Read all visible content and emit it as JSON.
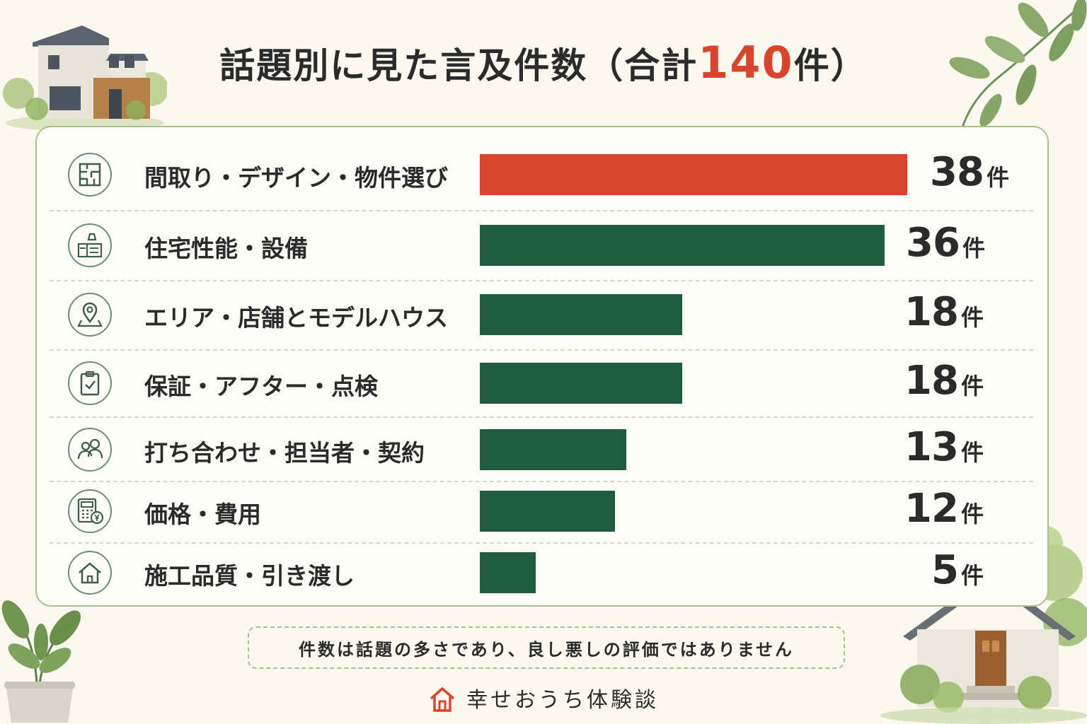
{
  "title": {
    "prefix": "話題別に見た言及件数（合計",
    "total": "140",
    "suffix": "件）"
  },
  "colors": {
    "highlight": "#d9442c",
    "bar": "#1e5e3c",
    "accent_green": "#a9c08e"
  },
  "chart_data": {
    "type": "bar",
    "orientation": "horizontal",
    "unit": "件",
    "total": 140,
    "categories": [
      "間取り・デザイン・物件選び",
      "住宅性能・設備",
      "エリア・店舗とモデルハウス",
      "保証・アフター・点検",
      "打ち合わせ・担当者・契約",
      "価格・費用",
      "施工品質・引き渡し"
    ],
    "values": [
      38,
      36,
      18,
      18,
      13,
      12,
      5
    ],
    "highlighted_index": 0,
    "icons": [
      "floorplan-icon",
      "kitchen-icon",
      "map-pin-icon",
      "clipboard-check-icon",
      "people-icon",
      "calculator-yen-icon",
      "house-icon"
    ],
    "xlim": [
      0,
      38
    ]
  },
  "note": "件数は話題の多さであり、良し悪しの評価ではありません",
  "brand": "幸せおうち体験談"
}
